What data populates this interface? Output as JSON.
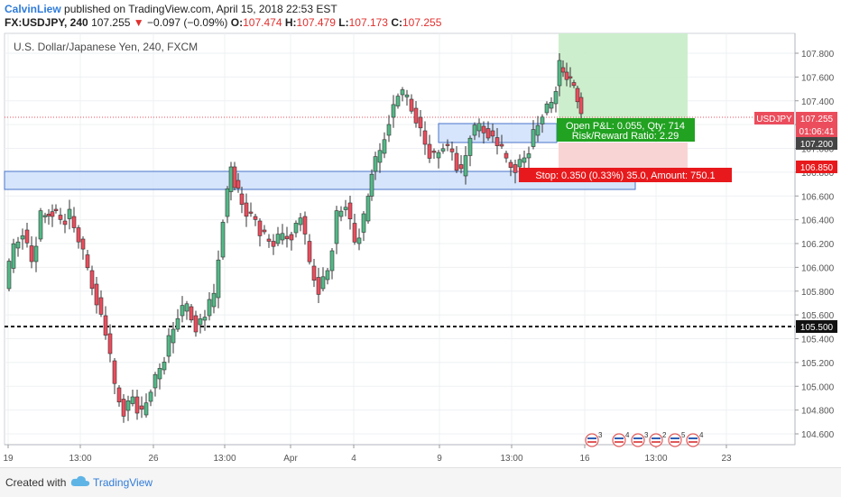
{
  "header": {
    "author": "CalvinLiew",
    "published_text": " published on TradingView.com, April 15, 2018 22:53 EST",
    "symbol": "FX:USDJPY, 240",
    "last": "107.255",
    "change_arrow": "▼",
    "change": "−0.097 (−0.09%)",
    "o_label": "O:",
    "o_value": "107.474",
    "h_label": "H:",
    "h_value": "107.479",
    "l_label": "L:",
    "l_value": "107.173",
    "c_label": "C:",
    "c_value": "107.255"
  },
  "chart": {
    "title": "U.S. Dollar/Japanese Yen, 240, FXCM",
    "price_ticks": [
      "107.800",
      "107.600",
      "107.400",
      "107.200",
      "107.000",
      "106.800",
      "106.600",
      "106.400",
      "106.200",
      "106.000",
      "105.800",
      "105.600",
      "105.400",
      "105.200",
      "105.000",
      "104.800",
      "104.600"
    ],
    "time_ticks": [
      "19",
      "13:00",
      "26",
      "13:00",
      "Apr",
      "4",
      "9",
      "13:00",
      "16",
      "13:00",
      "23"
    ],
    "symbol_tag": "USDJPY",
    "price_tag": "107.255",
    "countdown_tag": "01:06:41",
    "entry_tag": "107.200",
    "stop_tag": "106.850",
    "line_tag": "105.500",
    "pnl_line1": "Open P&L: 0.055, Qty: 714",
    "pnl_line2": "Risk/Reward Ratio: 2.29",
    "stop_label": "Stop: 0.350 (0.33%) 35.0, Amount: 750.1",
    "event_counts": [
      "3",
      "4",
      "3",
      "2",
      "5",
      "4"
    ],
    "colors": {
      "up": "#53b987",
      "down": "#eb4d5c",
      "zone_fill": "#cfe0fa",
      "zone_stroke": "#4a74c9",
      "profit_fill": "#c7ecc7",
      "loss_fill": "#f9cccc",
      "stop_label_bg": "#e8191c",
      "pnl_label_bg": "#21a221",
      "price_tag_bg": "#eb4d5c",
      "entry_tag_bg": "#444444"
    }
  },
  "footer": {
    "created_with": "Created with",
    "brand": "TradingView"
  }
}
